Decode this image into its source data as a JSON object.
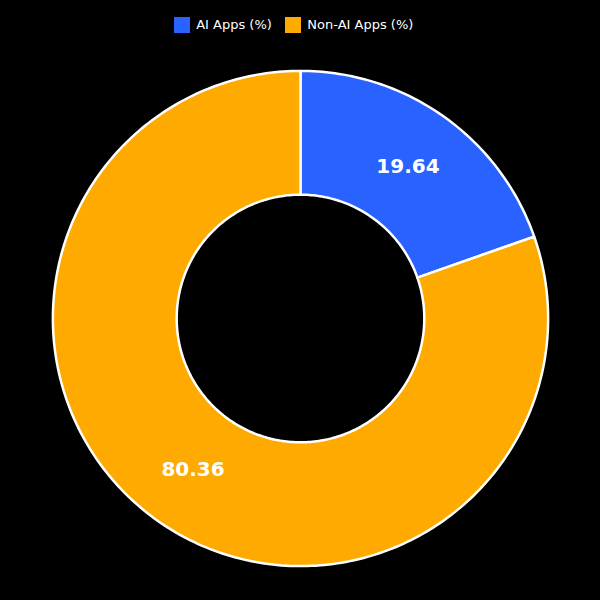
{
  "chart_data": {
    "type": "donut",
    "categories": [
      "AI Apps (%)",
      "Non-AI Apps (%)"
    ],
    "values": [
      19.64,
      80.36
    ],
    "colors": [
      "#2962ff",
      "#ffaa00"
    ],
    "data_labels": true,
    "legend": "top"
  }
}
